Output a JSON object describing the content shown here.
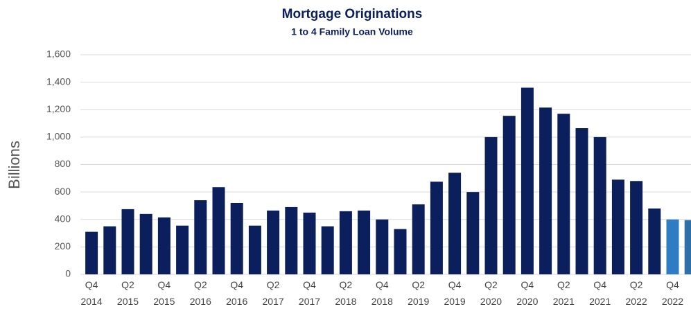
{
  "chart_data": {
    "type": "bar",
    "title": "Mortgage Originations",
    "subtitle": "1 to 4 Family Loan Volume",
    "y_label": "Billions",
    "categories": [
      "Q4 2014",
      null,
      "Q2 2015",
      null,
      "Q4 2015",
      null,
      "Q2 2016",
      null,
      "Q4 2016",
      null,
      "Q2 2017",
      null,
      "Q4 2017",
      null,
      "Q2 2018",
      null,
      "Q4 2018",
      null,
      "Q2 2019",
      null,
      "Q4 2019",
      null,
      "Q2 2020",
      null,
      "Q4 2020",
      null,
      "Q2 2021",
      null,
      "Q4 2021",
      null,
      "Q2 2022",
      null,
      "Q4 2022",
      null
    ],
    "values": [
      310,
      350,
      475,
      440,
      415,
      355,
      540,
      635,
      520,
      355,
      465,
      490,
      450,
      350,
      460,
      465,
      400,
      330,
      510,
      675,
      740,
      600,
      1000,
      1155,
      1360,
      1215,
      1170,
      1065,
      1000,
      690,
      680,
      480,
      400,
      395
    ],
    "colors": [
      "#0b1f5c",
      "#0b1f5c",
      "#0b1f5c",
      "#0b1f5c",
      "#0b1f5c",
      "#0b1f5c",
      "#0b1f5c",
      "#0b1f5c",
      "#0b1f5c",
      "#0b1f5c",
      "#0b1f5c",
      "#0b1f5c",
      "#0b1f5c",
      "#0b1f5c",
      "#0b1f5c",
      "#0b1f5c",
      "#0b1f5c",
      "#0b1f5c",
      "#0b1f5c",
      "#0b1f5c",
      "#0b1f5c",
      "#0b1f5c",
      "#0b1f5c",
      "#0b1f5c",
      "#0b1f5c",
      "#0b1f5c",
      "#0b1f5c",
      "#0b1f5c",
      "#0b1f5c",
      "#0b1f5c",
      "#0b1f5c",
      "#0b1f5c",
      "#2e7cc4",
      "#2e6fa8"
    ],
    "ylim": [
      0,
      1600
    ],
    "yticks": [
      0,
      200,
      400,
      600,
      800,
      {
        "value": 1000,
        "label": "1,000"
      },
      {
        "value": 1200,
        "label": "1,200"
      },
      {
        "value": 1400,
        "label": "1,400"
      },
      {
        "value": 1600,
        "label": "1,600"
      }
    ],
    "grid": true
  }
}
